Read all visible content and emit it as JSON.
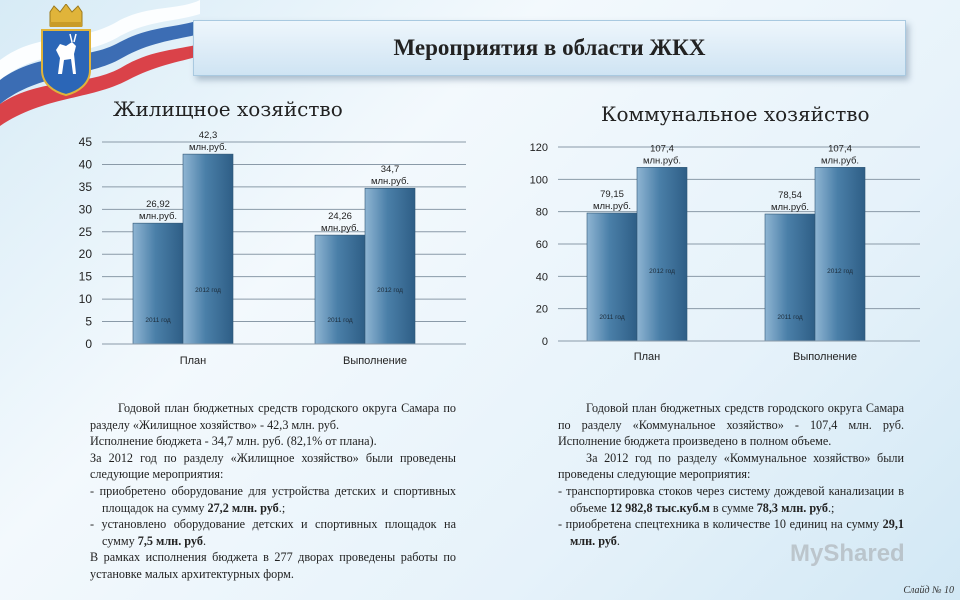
{
  "title": "Мероприятия в области ЖКХ",
  "chart_data": [
    {
      "type": "bar",
      "title": "Жилищное хозяйство",
      "categories": [
        "План",
        "Выполнение"
      ],
      "ylim": [
        0,
        45
      ],
      "yticks": [
        "0",
        "5",
        "10",
        "15",
        "20",
        "25",
        "30",
        "35",
        "40",
        "45"
      ],
      "grid": true,
      "series": [
        {
          "name": "2011 год",
          "values": [
            26.92,
            24.26
          ],
          "labels": [
            "26,92",
            "24,26"
          ]
        },
        {
          "name": "2012 год",
          "values": [
            42.3,
            34.7
          ],
          "labels": [
            "42,3",
            "34,7"
          ]
        }
      ],
      "value_unit": "млн.руб."
    },
    {
      "type": "bar",
      "title": "Коммунальное хозяйство",
      "categories": [
        "План",
        "Выполнение"
      ],
      "ylim": [
        0,
        120
      ],
      "yticks": [
        "0",
        "20",
        "40",
        "60",
        "80",
        "100",
        "120"
      ],
      "grid": true,
      "series": [
        {
          "name": "2011 год",
          "values": [
            79.15,
            78.54
          ],
          "labels": [
            "79,15",
            "78,54"
          ]
        },
        {
          "name": "2012 год",
          "values": [
            107.4,
            107.4
          ],
          "labels": [
            "107,4",
            "107,4"
          ]
        }
      ],
      "value_unit": "млн.руб."
    }
  ],
  "left_text": {
    "p1": "Годовой план бюджетных средств городского округа Самара по разделу «Жилищное хозяйство» - 42,3 млн. руб.",
    "p2": "Исполнение бюджета - 34,7 млн. руб. (82,1% от плана).",
    "p3": "За 2012 год по разделу «Жилищное хозяйство» были проведены следующие мероприятия:",
    "b1_pre": "- приобретено оборудование для устройства детских и спортивных площадок на сумму ",
    "b1_bold": "27,2 млн. руб",
    "b1_post": ".;",
    "b2_pre": "- установлено оборудование детских и спортивных площадок на сумму ",
    "b2_bold": "7,5 млн. руб",
    "b2_post": ".",
    "p4": "В рамках исполнения бюджета в 277 дворах проведены работы по установке малых архитектурных форм."
  },
  "right_text": {
    "p1": "Годовой план бюджетных средств городского округа Самара по разделу «Коммунальное хозяйство» - 107,4 млн. руб. Исполнение бюджета произведено в полном объеме.",
    "p2": "За 2012 год по разделу «Коммунальное хозяйство» были проведены следующие мероприятия:",
    "b1_pre": "- транспортировка стоков через систему дождевой канализации в объеме ",
    "b1_bold1": "12 982,8 тыс.куб.м",
    "b1_mid": " в сумме ",
    "b1_bold2": "78,3 млн. руб",
    "b1_post": ".;",
    "b2_pre": "- приобретена спецтехника в количестве 10 единиц на сумму ",
    "b2_bold": "29,1 млн. руб",
    "b2_post": "."
  },
  "watermark": "MyShared",
  "slide_number": "Слайд № 10",
  "colors": {
    "bar_fill": "#4a7fa8",
    "bar_light": "#8fb5d3"
  }
}
